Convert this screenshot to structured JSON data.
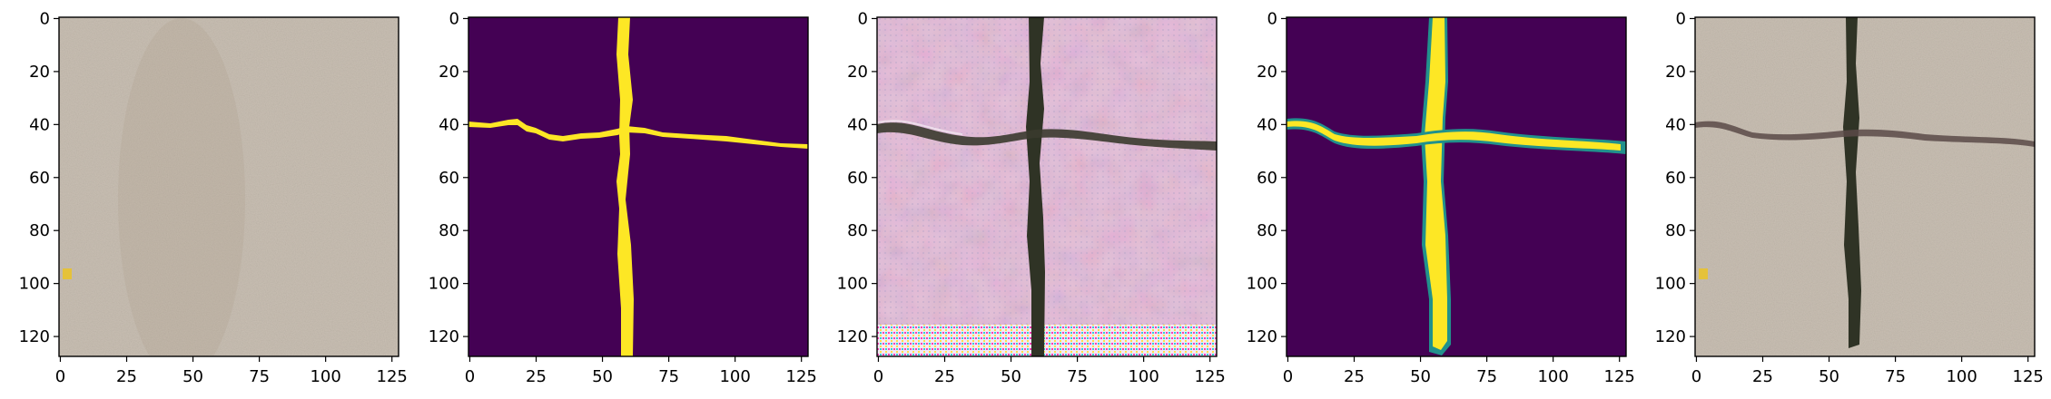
{
  "figure": {
    "panels": [
      {
        "name": "concrete-photo",
        "description_kind": "photo"
      },
      {
        "name": "crack-mask",
        "description_kind": "mask"
      },
      {
        "name": "generated-crack-image",
        "description_kind": "generated"
      },
      {
        "name": "predicted-crack-mask",
        "description_kind": "soft-mask"
      },
      {
        "name": "composited-crack-photo",
        "description_kind": "composite"
      }
    ],
    "axes": {
      "x_ticks": [
        0,
        25,
        50,
        75,
        100,
        125
      ],
      "y_ticks": [
        0,
        20,
        40,
        60,
        80,
        100,
        120
      ],
      "x_range": [
        0,
        128
      ],
      "y_range": [
        0,
        128
      ]
    },
    "colors": {
      "concrete": "#cdc4b8",
      "viridis_dark": "#440154",
      "viridis_yellow": "#fde725",
      "viridis_teal": "#21918c",
      "generated_pink": "#e3c2d8",
      "crack_dark": "#2f3325"
    }
  }
}
